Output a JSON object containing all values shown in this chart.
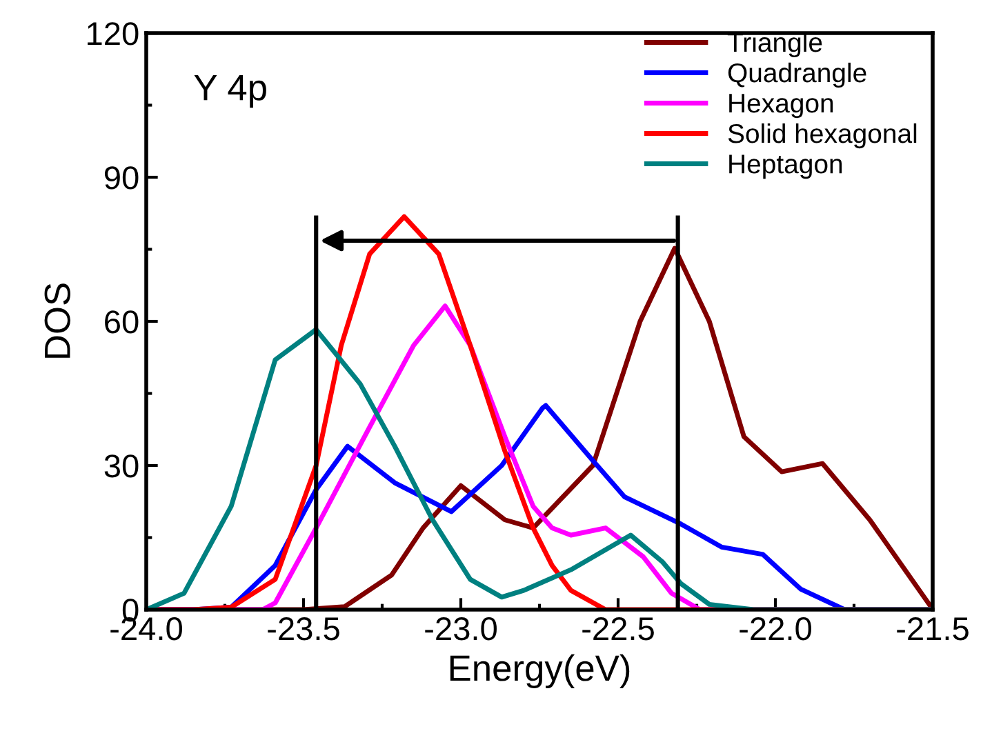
{
  "chart_data": {
    "type": "line",
    "xlabel": "Energy(eV)",
    "ylabel": "DOS",
    "xlim": [
      -24.0,
      -21.5
    ],
    "xticks": [
      {
        "value": -24.0,
        "label": "-24.0"
      },
      {
        "value": -23.5,
        "label": "-23.5"
      },
      {
        "value": -23.0,
        "label": "-23.0"
      },
      {
        "value": -22.5,
        "label": "-22.5"
      },
      {
        "value": -22.0,
        "label": "-22.0"
      },
      {
        "value": -21.5,
        "label": "-21.5"
      }
    ],
    "ylim": [
      0,
      120
    ],
    "yticks": [
      0,
      30,
      60,
      90,
      120
    ],
    "legend": "top right",
    "marker": "none",
    "line_style": "solid",
    "grid": false,
    "annotations": [
      "Y 4p"
    ],
    "ref_lines": [
      {
        "axis": "x",
        "value": -23.46,
        "color": "#000000"
      },
      {
        "axis": "x",
        "value": -22.31,
        "color": "#000000"
      }
    ],
    "series": [
      {
        "name": "Triangle",
        "color": "#800000",
        "x": [
          -24.0,
          -23.5,
          -23.37,
          -23.22,
          -23.12,
          -23.0,
          -22.86,
          -22.77,
          -22.58,
          -22.43,
          -22.32,
          -22.21,
          -22.1,
          -21.98,
          -21.85,
          -21.7,
          -21.51
        ],
        "values": [
          0,
          0,
          0.6,
          7.2,
          17,
          25.8,
          18.7,
          17,
          30,
          60,
          75.2,
          60,
          36,
          28.7,
          30.4,
          18.7,
          1
        ]
      },
      {
        "name": "Quadrangle",
        "color": "#0000ff",
        "x": [
          -24.0,
          -23.85,
          -23.73,
          -23.59,
          -23.46,
          -23.36,
          -23.21,
          -23.03,
          -22.87,
          -22.74,
          -22.73,
          -22.58,
          -22.48,
          -22.3,
          -22.17,
          -22.04,
          -21.92,
          -21.78,
          -21.5
        ],
        "values": [
          0,
          0,
          0.5,
          9.2,
          25,
          34,
          26.4,
          20.4,
          30,
          42,
          42.5,
          31,
          23.5,
          17.8,
          13,
          11.5,
          4.3,
          0,
          0
        ]
      },
      {
        "name": "Hexagon",
        "color": "#ff00ff",
        "x": [
          -24.0,
          -23.63,
          -23.59,
          -23.46,
          -23.29,
          -23.15,
          -23.05,
          -22.97,
          -22.86,
          -22.77,
          -22.71,
          -22.65,
          -22.54,
          -22.42,
          -22.33,
          -22.24,
          -21.5
        ],
        "values": [
          0,
          0,
          1.4,
          17,
          38,
          55,
          63.2,
          55,
          36,
          21.5,
          17,
          15.5,
          17,
          11,
          3.4,
          0,
          0
        ]
      },
      {
        "name": "Solid hexagonal",
        "color": "#ff0000",
        "x": [
          -24.0,
          -23.85,
          -23.73,
          -23.59,
          -23.46,
          -23.38,
          -23.29,
          -23.18,
          -23.07,
          -22.97,
          -22.86,
          -22.77,
          -22.71,
          -22.65,
          -22.54,
          -21.5
        ],
        "values": [
          0,
          0,
          0.5,
          6.3,
          30,
          55,
          74,
          81.8,
          74,
          55,
          33,
          17,
          9.2,
          4,
          0,
          0
        ]
      },
      {
        "name": "Heptagon",
        "color": "#008080",
        "x": [
          -24.0,
          -23.88,
          -23.73,
          -23.59,
          -23.46,
          -23.32,
          -23.21,
          -23.09,
          -22.97,
          -22.87,
          -22.8,
          -22.65,
          -22.46,
          -22.36,
          -22.3,
          -22.21,
          -22.07,
          -21.5
        ],
        "values": [
          0,
          3.4,
          21.5,
          52,
          58.3,
          47,
          34,
          18.7,
          6.3,
          2.6,
          4,
          8.3,
          15.5,
          10,
          5.4,
          1.1,
          0,
          0
        ]
      }
    ]
  }
}
